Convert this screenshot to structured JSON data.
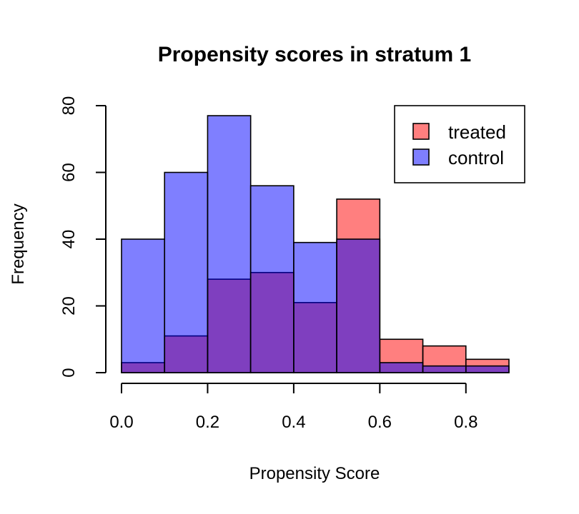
{
  "chart_data": {
    "type": "bar",
    "title": "Propensity scores in stratum 1",
    "xlabel": "Propensity Score",
    "ylabel": "Frequency",
    "bins": [
      [
        0.0,
        0.1
      ],
      [
        0.1,
        0.2
      ],
      [
        0.2,
        0.3
      ],
      [
        0.3,
        0.4
      ],
      [
        0.4,
        0.5
      ],
      [
        0.5,
        0.6
      ],
      [
        0.6,
        0.7
      ],
      [
        0.7,
        0.8
      ],
      [
        0.8,
        0.9
      ]
    ],
    "series": [
      {
        "name": "treated",
        "color": "#ff000080",
        "values": [
          3,
          11,
          28,
          30,
          21,
          52,
          10,
          8,
          4
        ]
      },
      {
        "name": "control",
        "color": "#0000ff80",
        "values": [
          40,
          60,
          77,
          56,
          39,
          40,
          3,
          2,
          2
        ]
      }
    ],
    "xlim": [
      0.0,
      0.9
    ],
    "ylim": [
      0,
      80
    ],
    "xticks": [
      "0.0",
      "0.2",
      "0.4",
      "0.6",
      "0.8"
    ],
    "yticks": [
      "0",
      "20",
      "40",
      "60",
      "80"
    ],
    "grid": false,
    "legend_position": "top-right"
  }
}
